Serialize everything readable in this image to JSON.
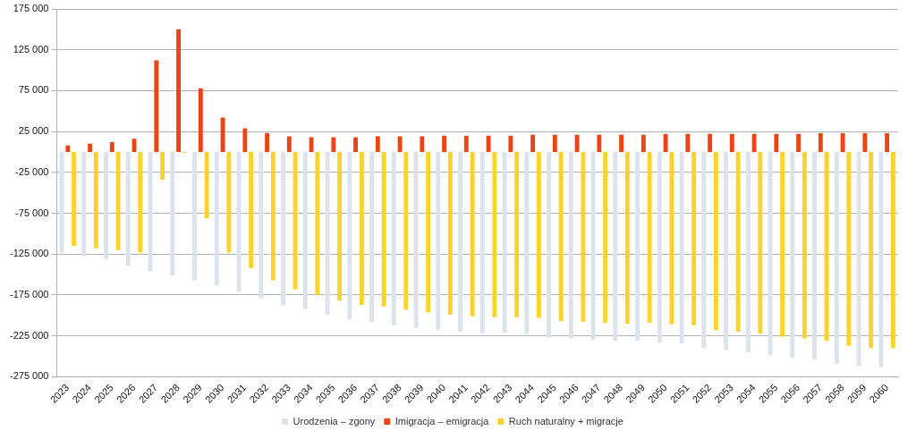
{
  "chart_data": {
    "type": "bar",
    "categories": [
      "2023",
      "2024",
      "2025",
      "2026",
      "2027",
      "2028",
      "2029",
      "2030",
      "2031",
      "2032",
      "2033",
      "2034",
      "2035",
      "2036",
      "2037",
      "2038",
      "2039",
      "2040",
      "2041",
      "2042",
      "2043",
      "2044",
      "2045",
      "2046",
      "2047",
      "2048",
      "2049",
      "2050",
      "2051",
      "2052",
      "2053",
      "2054",
      "2055",
      "2056",
      "2057",
      "2058",
      "2059",
      "2060"
    ],
    "series": [
      {
        "name": "Urodzenia – zgony",
        "color": "#dde3ec",
        "values": [
          -123000,
          -127000,
          -131000,
          -139000,
          -146000,
          -151000,
          -157000,
          -163000,
          -171000,
          -179000,
          -187000,
          -192000,
          -199000,
          -205000,
          -208000,
          -212000,
          -215000,
          -218000,
          -220000,
          -222000,
          -221000,
          -223000,
          -227000,
          -228000,
          -230000,
          -231000,
          -231000,
          -233000,
          -234000,
          -240000,
          -242000,
          -245000,
          -249000,
          -252000,
          -254000,
          -259000,
          -262000,
          -263000
        ]
      },
      {
        "name": "Imigracja – emigracja",
        "color": "#ee4414",
        "values": [
          8000,
          10000,
          12000,
          16000,
          112000,
          150000,
          78000,
          42000,
          29000,
          23000,
          19000,
          18000,
          18000,
          18000,
          19000,
          19000,
          19000,
          20000,
          20000,
          20000,
          20000,
          21000,
          21000,
          21000,
          21000,
          21000,
          21000,
          22000,
          22000,
          22000,
          22000,
          22000,
          22000,
          22000,
          23000,
          23000,
          23000,
          23000
        ]
      },
      {
        "name": "Ruch naturalny + migracje",
        "color": "#fdd22a",
        "values": [
          -115000,
          -118000,
          -120000,
          -123000,
          -34000,
          -1000,
          -81000,
          -123000,
          -142000,
          -157000,
          -168000,
          -175000,
          -182000,
          -187000,
          -189000,
          -193000,
          -196000,
          -199000,
          -201000,
          -202000,
          -202000,
          -203000,
          -207000,
          -208000,
          -209000,
          -210000,
          -209000,
          -211000,
          -212000,
          -218000,
          -220000,
          -222000,
          -226000,
          -228000,
          -231000,
          -237000,
          -240000,
          -240000
        ]
      }
    ],
    "ylim": [
      -275000,
      175000
    ],
    "yticks": [
      {
        "value": 175000,
        "label": "175 000"
      },
      {
        "value": 125000,
        "label": "125 000"
      },
      {
        "value": 75000,
        "label": "75 000"
      },
      {
        "value": 25000,
        "label": "25 000"
      },
      {
        "value": -25000,
        "label": "-25 000"
      },
      {
        "value": -75000,
        "label": "-75 000"
      },
      {
        "value": -125000,
        "label": "-125 000"
      },
      {
        "value": -175000,
        "label": "-175 000"
      },
      {
        "value": -225000,
        "label": "-225 000"
      },
      {
        "value": -275000,
        "label": "-275 000"
      }
    ],
    "grid": "y",
    "legend": "bottom"
  }
}
